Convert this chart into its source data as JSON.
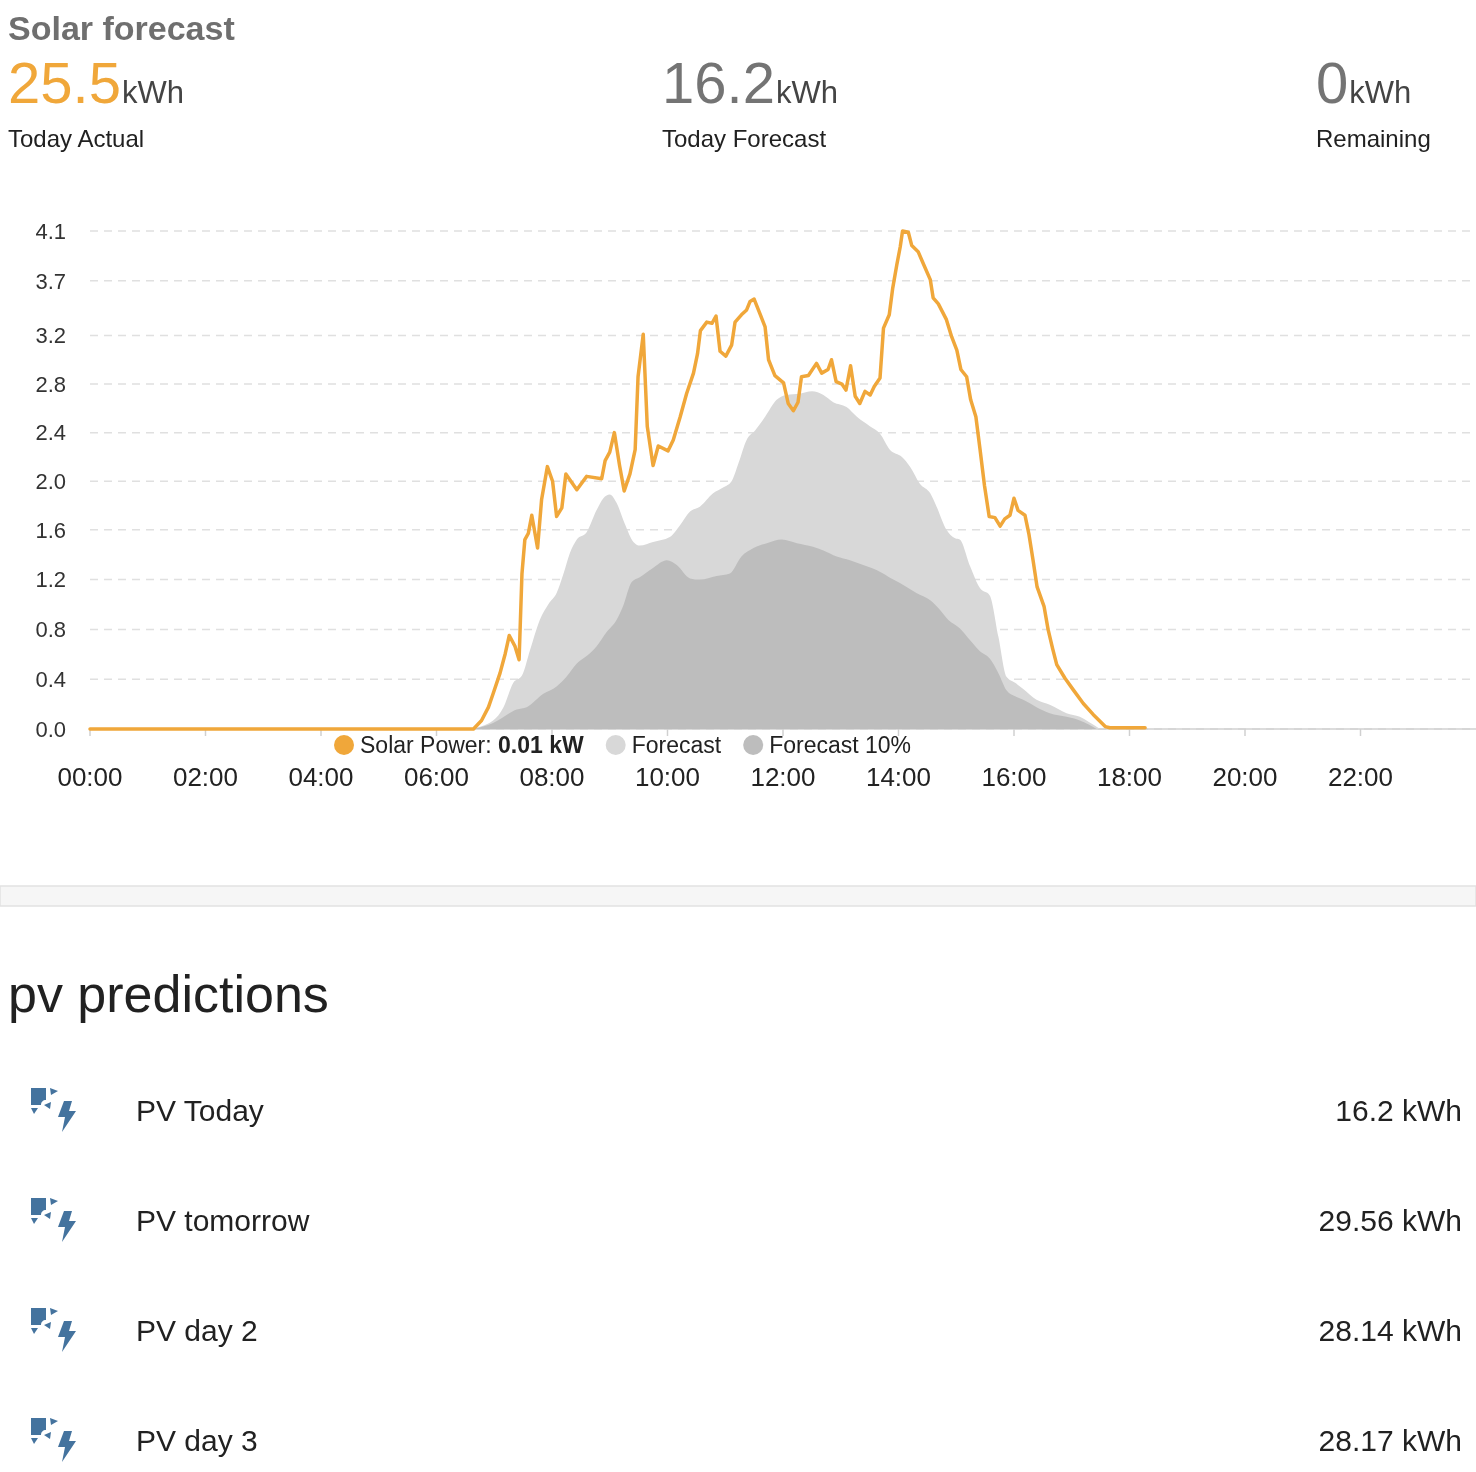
{
  "chart_data": {
    "type": "area",
    "title": "Solar forecast",
    "annotations": [
      "25.5",
      "kWh",
      "Today Actual",
      "16.2",
      "kWh",
      "Today Forecast",
      "0",
      "kWh",
      "Remaining",
      "pv predictions",
      "PV Today",
      "16.2 kWh",
      "PV tomorrow",
      "29.56 kWh",
      "PV day 2",
      "28.14 kWh",
      "PV day 3",
      "28.17 kWh"
    ],
    "xlim": [
      0,
      24
    ],
    "xticks": [
      {
        "value": 0,
        "label": "00:00"
      },
      {
        "value": 2,
        "label": "02:00"
      },
      {
        "value": 4,
        "label": "04:00"
      },
      {
        "value": 6,
        "label": "06:00"
      },
      {
        "value": 8,
        "label": "08:00"
      },
      {
        "value": 10,
        "label": "10:00"
      },
      {
        "value": 12,
        "label": "12:00"
      },
      {
        "value": 14,
        "label": "14:00"
      },
      {
        "value": 16,
        "label": "16:00"
      },
      {
        "value": 18,
        "label": "18:00"
      },
      {
        "value": 20,
        "label": "20:00"
      },
      {
        "value": 22,
        "label": "22:00"
      }
    ],
    "ylim": [
      0,
      4.1
    ],
    "yticks": [
      {
        "value": 0,
        "label": "0.0"
      },
      {
        "value": 0.41,
        "label": "0.4"
      },
      {
        "value": 0.82,
        "label": "0.8"
      },
      {
        "value": 1.23,
        "label": "1.2"
      },
      {
        "value": 1.64,
        "label": "1.6"
      },
      {
        "value": 2.04,
        "label": "2.0"
      },
      {
        "value": 2.44,
        "label": "2.4"
      },
      {
        "value": 2.84,
        "label": "2.8"
      },
      {
        "value": 3.24,
        "label": "3.2"
      },
      {
        "value": 3.69,
        "label": "3.7"
      },
      4.1
    ],
    "grid": "y",
    "legend": "bottom",
    "series": [
      {
        "name": "Solar Power: 0.01 kW",
        "type": "line",
        "color": "#f0a73a",
        "x": [
          0,
          6.64,
          6.78,
          6.9,
          6.98,
          7.1,
          7.19,
          7.26,
          7.36,
          7.43,
          7.48,
          7.53,
          7.59,
          7.65,
          7.75,
          7.82,
          7.92,
          8.01,
          8.08,
          8.17,
          8.24,
          8.43,
          8.6,
          8.86,
          8.92,
          9.0,
          9.08,
          9.17,
          9.25,
          9.35,
          9.44,
          9.49,
          9.58,
          9.65,
          9.75,
          9.84,
          10.01,
          10.1,
          10.22,
          10.33,
          10.45,
          10.52,
          10.57,
          10.68,
          10.77,
          10.84,
          10.91,
          11.01,
          11.11,
          11.17,
          11.28,
          11.37,
          11.43,
          11.5,
          11.6,
          11.69,
          11.75,
          11.86,
          12.01,
          12.09,
          12.18,
          12.26,
          12.32,
          12.44,
          12.58,
          12.67,
          12.78,
          12.84,
          12.92,
          13.02,
          13.09,
          13.17,
          13.25,
          13.33,
          13.42,
          13.51,
          13.58,
          13.68,
          13.74,
          13.84,
          13.9,
          13.97,
          14.03,
          14.07,
          14.17,
          14.23,
          14.34,
          14.43,
          14.55,
          14.6,
          14.69,
          14.83,
          14.92,
          15.01,
          15.08,
          15.18,
          15.25,
          15.34,
          15.41,
          15.49,
          15.57,
          15.67,
          15.76,
          15.84,
          15.93,
          16.0,
          16.07,
          16.19,
          16.26,
          16.33,
          16.4,
          16.52,
          16.59,
          16.67,
          16.74,
          16.88,
          17.03,
          17.2,
          17.37,
          17.58,
          17.66,
          18.27
        ],
        "values": [
          0,
          0,
          0.07,
          0.18,
          0.29,
          0.46,
          0.62,
          0.77,
          0.68,
          0.57,
          1.28,
          1.56,
          1.61,
          1.76,
          1.49,
          1.89,
          2.16,
          2.04,
          1.75,
          1.82,
          2.1,
          1.97,
          2.08,
          2.06,
          2.21,
          2.28,
          2.44,
          2.17,
          1.96,
          2.1,
          2.3,
          2.9,
          3.25,
          2.49,
          2.17,
          2.33,
          2.29,
          2.38,
          2.57,
          2.76,
          2.93,
          3.09,
          3.28,
          3.35,
          3.34,
          3.4,
          3.11,
          3.07,
          3.16,
          3.35,
          3.41,
          3.45,
          3.52,
          3.54,
          3.42,
          3.31,
          3.04,
          2.91,
          2.85,
          2.68,
          2.62,
          2.69,
          2.9,
          2.91,
          3.01,
          2.93,
          2.96,
          3.04,
          2.86,
          2.84,
          2.79,
          2.99,
          2.74,
          2.68,
          2.78,
          2.75,
          2.82,
          2.89,
          3.3,
          3.41,
          3.63,
          3.82,
          3.97,
          4.1,
          4.09,
          3.98,
          3.93,
          3.83,
          3.7,
          3.55,
          3.5,
          3.37,
          3.23,
          3.12,
          2.96,
          2.9,
          2.71,
          2.57,
          2.31,
          2.0,
          1.75,
          1.74,
          1.67,
          1.73,
          1.76,
          1.9,
          1.8,
          1.76,
          1.6,
          1.39,
          1.17,
          1.01,
          0.82,
          0.66,
          0.53,
          0.42,
          0.32,
          0.21,
          0.12,
          0.02,
          0.01,
          0.01
        ]
      },
      {
        "name": "Forecast",
        "color": "#d8d8d8",
        "x": [
          6.58,
          6.98,
          7.16,
          7.33,
          7.48,
          7.62,
          7.79,
          7.94,
          8.08,
          8.2,
          8.31,
          8.43,
          8.6,
          8.77,
          8.89,
          9.0,
          9.12,
          9.26,
          9.41,
          9.52,
          9.75,
          10.04,
          10.22,
          10.39,
          10.56,
          10.79,
          10.97,
          11.11,
          11.23,
          11.37,
          11.52,
          11.69,
          11.89,
          12.06,
          12.29,
          12.5,
          12.7,
          12.87,
          13.1,
          13.28,
          13.51,
          13.68,
          13.85,
          14.06,
          14.2,
          14.37,
          14.55,
          14.66,
          14.83,
          14.98,
          15.06,
          15.24,
          15.41,
          15.58,
          15.73,
          15.87,
          16.02,
          16.16,
          16.39,
          16.62,
          16.91,
          17.14,
          17.29,
          17.49
        ],
        "values": [
          0,
          0.07,
          0.18,
          0.38,
          0.44,
          0.65,
          0.9,
          1.03,
          1.12,
          1.28,
          1.45,
          1.56,
          1.62,
          1.8,
          1.9,
          1.93,
          1.86,
          1.69,
          1.54,
          1.51,
          1.54,
          1.58,
          1.68,
          1.79,
          1.83,
          1.94,
          1.99,
          2.04,
          2.19,
          2.38,
          2.46,
          2.57,
          2.71,
          2.75,
          2.76,
          2.78,
          2.75,
          2.69,
          2.65,
          2.57,
          2.49,
          2.43,
          2.3,
          2.24,
          2.16,
          2.02,
          1.94,
          1.83,
          1.64,
          1.57,
          1.56,
          1.34,
          1.16,
          1.1,
          0.76,
          0.43,
          0.38,
          0.33,
          0.24,
          0.2,
          0.13,
          0.1,
          0.06,
          0
        ]
      },
      {
        "name": "Forecast 10%",
        "color": "#bdbdbd",
        "x": [
          6.64,
          6.98,
          7.39,
          7.56,
          7.85,
          8.08,
          8.25,
          8.43,
          8.6,
          8.77,
          8.95,
          9.12,
          9.23,
          9.38,
          9.52,
          9.73,
          9.99,
          10.16,
          10.39,
          10.56,
          10.85,
          11.08,
          11.28,
          11.49,
          11.72,
          11.98,
          12.24,
          12.52,
          12.7,
          12.93,
          13.16,
          13.45,
          13.62,
          13.91,
          14.14,
          14.31,
          14.55,
          14.72,
          14.86,
          15.06,
          15.24,
          15.41,
          15.58,
          15.73,
          15.87,
          16.02,
          16.16,
          16.39,
          16.62,
          16.91,
          17.14,
          17.43
        ],
        "values": [
          0,
          0.05,
          0.16,
          0.18,
          0.29,
          0.35,
          0.43,
          0.54,
          0.6,
          0.68,
          0.8,
          0.9,
          1.01,
          1.21,
          1.25,
          1.32,
          1.39,
          1.35,
          1.24,
          1.23,
          1.26,
          1.28,
          1.42,
          1.49,
          1.53,
          1.56,
          1.53,
          1.5,
          1.47,
          1.42,
          1.39,
          1.34,
          1.31,
          1.23,
          1.17,
          1.12,
          1.06,
          0.98,
          0.9,
          0.83,
          0.73,
          0.64,
          0.58,
          0.46,
          0.32,
          0.27,
          0.24,
          0.18,
          0.13,
          0.1,
          0.07,
          0
        ]
      }
    ]
  }
}
